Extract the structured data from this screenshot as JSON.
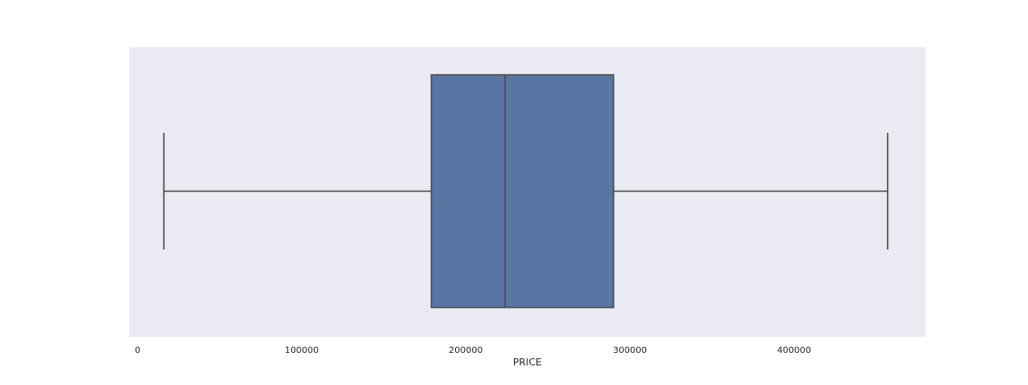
{
  "chart_data": {
    "type": "boxplot",
    "orientation": "horizontal",
    "xlabel": "PRICE",
    "xlim": [
      -5000,
      480000
    ],
    "xticks": [
      0,
      100000,
      200000,
      300000,
      400000
    ],
    "xtick_labels": [
      "0",
      "100000",
      "200000",
      "300000",
      "400000"
    ],
    "grid": false,
    "box": {
      "whisker_low": 16000,
      "q1": 179000,
      "median": 224000,
      "q3": 290000,
      "whisker_high": 457000
    },
    "colors": {
      "background": "#eaeaf2",
      "box_fill": "#5875a4",
      "line": "#4d4d4d",
      "text": "#262626"
    }
  }
}
